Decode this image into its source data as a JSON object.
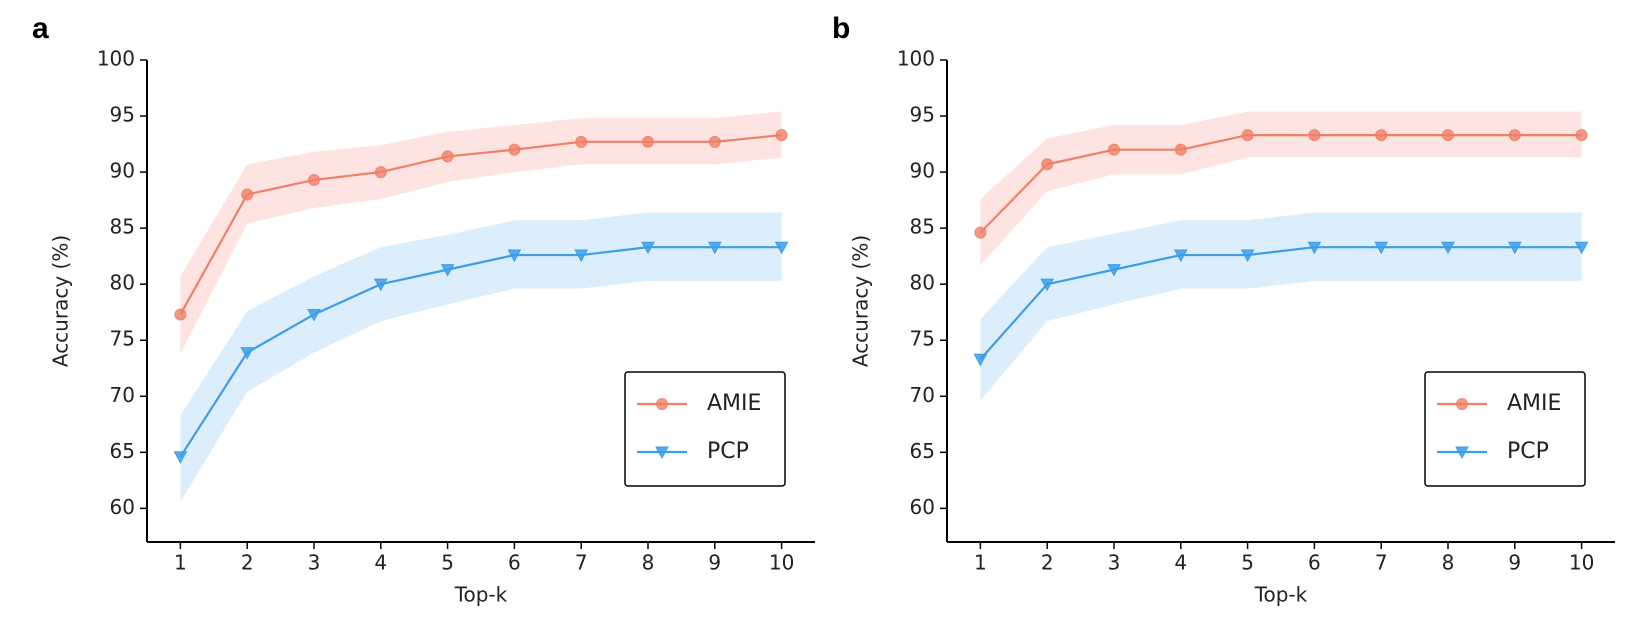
{
  "chart_data": [
    {
      "type": "line",
      "panel": "a",
      "xlabel": "Top-k",
      "ylabel": "Accuracy (%)",
      "x": [
        1,
        2,
        3,
        4,
        5,
        6,
        7,
        8,
        9,
        10
      ],
      "xlim": [
        0.5,
        10.5
      ],
      "xticks": [
        1,
        2,
        3,
        4,
        5,
        6,
        7,
        8,
        9,
        10
      ],
      "ylim": [
        57,
        100
      ],
      "yticks": [
        60,
        65,
        70,
        75,
        80,
        85,
        90,
        95,
        100
      ],
      "legend": "lower right",
      "series": [
        {
          "name": "AMIE",
          "color": "#f07f68",
          "band_color": "#fde4e0",
          "marker": "circle",
          "values": [
            77.3,
            88.0,
            89.3,
            90.0,
            91.4,
            92.0,
            92.7,
            92.7,
            92.7,
            93.3
          ],
          "upper": [
            80.7,
            90.7,
            91.8,
            92.4,
            93.6,
            94.2,
            94.8,
            94.8,
            94.8,
            95.4
          ],
          "lower": [
            73.8,
            85.4,
            86.8,
            87.6,
            89.1,
            90.0,
            90.7,
            90.7,
            90.7,
            91.3
          ]
        },
        {
          "name": "PCP",
          "color": "#3c9de8",
          "band_color": "#dcedfb",
          "marker": "triangle-down",
          "values": [
            64.6,
            73.9,
            77.3,
            80.0,
            81.3,
            82.6,
            82.6,
            83.3,
            83.3,
            83.3
          ],
          "upper": [
            68.3,
            77.6,
            80.7,
            83.3,
            84.4,
            85.7,
            85.7,
            86.4,
            86.4,
            86.4
          ],
          "lower": [
            60.6,
            70.4,
            73.9,
            76.7,
            78.2,
            79.6,
            79.6,
            80.3,
            80.3,
            80.3
          ]
        }
      ]
    },
    {
      "type": "line",
      "panel": "b",
      "xlabel": "Top-k",
      "ylabel": "Accuracy (%)",
      "x": [
        1,
        2,
        3,
        4,
        5,
        6,
        7,
        8,
        9,
        10
      ],
      "xlim": [
        0.5,
        10.5
      ],
      "xticks": [
        1,
        2,
        3,
        4,
        5,
        6,
        7,
        8,
        9,
        10
      ],
      "ylim": [
        57,
        100
      ],
      "yticks": [
        60,
        65,
        70,
        75,
        80,
        85,
        90,
        95,
        100
      ],
      "legend": "lower right",
      "series": [
        {
          "name": "AMIE",
          "color": "#f07f68",
          "band_color": "#fde4e0",
          "marker": "circle",
          "values": [
            84.6,
            90.7,
            92.0,
            92.0,
            93.3,
            93.3,
            93.3,
            93.3,
            93.3,
            93.3
          ],
          "upper": [
            87.6,
            93.0,
            94.2,
            94.2,
            95.4,
            95.4,
            95.4,
            95.4,
            95.4,
            95.4
          ],
          "lower": [
            81.7,
            88.3,
            89.8,
            89.8,
            91.3,
            91.3,
            91.3,
            91.3,
            91.3,
            91.3
          ]
        },
        {
          "name": "PCP",
          "color": "#3c9de8",
          "band_color": "#dcedfb",
          "marker": "triangle-down",
          "values": [
            73.3,
            80.0,
            81.3,
            82.6,
            82.6,
            83.3,
            83.3,
            83.3,
            83.3,
            83.3
          ],
          "upper": [
            76.9,
            83.3,
            84.5,
            85.7,
            85.7,
            86.4,
            86.4,
            86.4,
            86.4,
            86.4
          ],
          "lower": [
            69.6,
            76.7,
            78.2,
            79.6,
            79.6,
            80.3,
            80.3,
            80.3,
            80.3,
            80.3
          ]
        }
      ]
    }
  ]
}
